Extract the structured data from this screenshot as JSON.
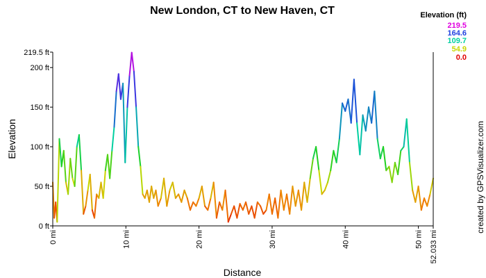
{
  "chart_data": {
    "type": "line",
    "title": "New London, CT to New Haven, CT",
    "xlabel": "Distance",
    "ylabel": "Elevation",
    "credit": "created by GPSVisualizer.com",
    "xlim": [
      0,
      52.033
    ],
    "ylim": [
      0,
      219.5
    ],
    "x_ticks": [
      {
        "value": 0,
        "label": "0 mi"
      },
      {
        "value": 10,
        "label": "10 mi"
      },
      {
        "value": 20,
        "label": "20 mi"
      },
      {
        "value": 30,
        "label": "30 mi"
      },
      {
        "value": 40,
        "label": "40 mi"
      },
      {
        "value": 50,
        "label": "50 mi"
      },
      {
        "value": 52.033,
        "label": "52.033 mi"
      }
    ],
    "y_ticks": [
      {
        "value": 0,
        "label": "0 ft"
      },
      {
        "value": 50,
        "label": "50 ft"
      },
      {
        "value": 100,
        "label": "100 ft"
      },
      {
        "value": 150,
        "label": "150 ft"
      },
      {
        "value": 200,
        "label": "200 ft"
      },
      {
        "value": 219.5,
        "label": "219.5 ft"
      }
    ],
    "legend": {
      "title": "Elevation (ft)",
      "placement": "top-right",
      "entries": [
        {
          "label": "219.5",
          "color": "#e000e0"
        },
        {
          "label": "164.6",
          "color": "#2040e0"
        },
        {
          "label": "109.7",
          "color": "#00d0a0"
        },
        {
          "label": "54.9",
          "color": "#c8d800"
        },
        {
          "label": "0.0",
          "color": "#e00000"
        }
      ]
    },
    "color_stops": [
      {
        "value": 0,
        "color": "#e00000"
      },
      {
        "value": 30,
        "color": "#f08000"
      },
      {
        "value": 54.9,
        "color": "#c8d800"
      },
      {
        "value": 85,
        "color": "#20d020"
      },
      {
        "value": 109.7,
        "color": "#00d0a0"
      },
      {
        "value": 164.6,
        "color": "#2040e0"
      },
      {
        "value": 219.5,
        "color": "#e000e0"
      }
    ],
    "series": [
      {
        "x": [
          0,
          0.2,
          0.4,
          0.6,
          0.9,
          1.2,
          1.5,
          1.8,
          2.1,
          2.4,
          2.7,
          3.0,
          3.3,
          3.6,
          3.9,
          4.2,
          4.5,
          4.8,
          5.1,
          5.4,
          5.7,
          6.0,
          6.3,
          6.6,
          6.9,
          7.2,
          7.5,
          7.8,
          8.1,
          8.4,
          8.7,
          9.0,
          9.3,
          9.6,
          9.9,
          10.2,
          10.5,
          10.8,
          11.1,
          11.4,
          11.7,
          12.0,
          12.3,
          12.6,
          12.9,
          13.2,
          13.5,
          13.8,
          14.1,
          14.4,
          14.8,
          15.2,
          15.6,
          16.0,
          16.4,
          16.8,
          17.2,
          17.6,
          18.0,
          18.4,
          18.8,
          19.2,
          19.6,
          20.0,
          20.4,
          20.8,
          21.2,
          21.6,
          22.0,
          22.4,
          22.8,
          23.2,
          23.6,
          24.0,
          24.4,
          24.8,
          25.2,
          25.6,
          26.0,
          26.4,
          26.8,
          27.2,
          27.6,
          28.0,
          28.4,
          28.8,
          29.2,
          29.6,
          30.0,
          30.4,
          30.8,
          31.2,
          31.6,
          32.0,
          32.4,
          32.8,
          33.2,
          33.6,
          34.0,
          34.4,
          34.8,
          35.2,
          35.6,
          36.0,
          36.4,
          36.8,
          37.2,
          37.6,
          38.0,
          38.4,
          38.8,
          39.2,
          39.6,
          40.0,
          40.4,
          40.8,
          41.2,
          41.6,
          42.0,
          42.4,
          42.8,
          43.2,
          43.6,
          44.0,
          44.4,
          44.8,
          45.2,
          45.6,
          46.0,
          46.4,
          46.8,
          47.2,
          47.6,
          48.0,
          48.4,
          48.8,
          49.2,
          49.6,
          50.0,
          50.4,
          50.8,
          51.2,
          51.6,
          52.033
        ],
        "y": [
          55,
          10,
          30,
          5,
          110,
          75,
          95,
          55,
          40,
          85,
          60,
          50,
          100,
          115,
          70,
          15,
          25,
          45,
          65,
          20,
          10,
          40,
          35,
          55,
          35,
          70,
          90,
          60,
          95,
          125,
          170,
          192,
          160,
          180,
          80,
          150,
          190,
          219,
          195,
          150,
          100,
          75,
          40,
          35,
          45,
          30,
          50,
          35,
          45,
          25,
          35,
          60,
          25,
          45,
          55,
          35,
          40,
          30,
          45,
          35,
          20,
          30,
          25,
          35,
          50,
          25,
          20,
          35,
          55,
          10,
          30,
          20,
          45,
          5,
          15,
          25,
          10,
          28,
          20,
          30,
          15,
          25,
          10,
          30,
          25,
          15,
          20,
          40,
          15,
          35,
          10,
          45,
          20,
          40,
          15,
          50,
          25,
          45,
          20,
          55,
          30,
          60,
          85,
          100,
          70,
          40,
          45,
          55,
          70,
          95,
          80,
          110,
          155,
          145,
          160,
          130,
          185,
          130,
          90,
          140,
          120,
          150,
          130,
          170,
          110,
          85,
          100,
          70,
          75,
          55,
          80,
          65,
          95,
          100,
          135,
          80,
          45,
          30,
          50,
          20,
          35,
          25,
          40,
          60
        ]
      }
    ]
  }
}
